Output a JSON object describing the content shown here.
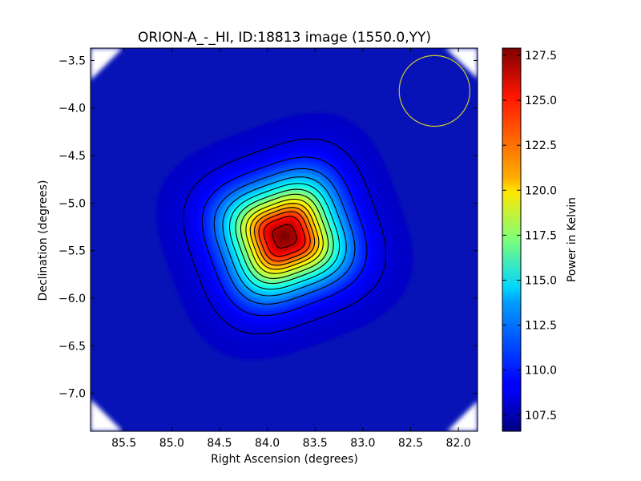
{
  "chart_data": {
    "type": "heatmap",
    "title": "ORION-A_-_HI, ID:18813 image (1550.0,YY)",
    "xlabel": "Right Ascension (degrees)",
    "ylabel": "Declination (degrees)",
    "colorbar_label": "Power in Kelvin",
    "x_axis_reversed": true,
    "xlim": [
      85.85,
      81.8
    ],
    "ylim": [
      -7.4,
      -3.37
    ],
    "xticks": [
      85.5,
      85.0,
      84.5,
      84.0,
      83.5,
      83.0,
      82.5,
      82.0
    ],
    "xtick_labels": [
      "85.5",
      "85.0",
      "84.5",
      "84.0",
      "83.5",
      "83.0",
      "82.5",
      "82.0"
    ],
    "yticks": [
      -3.5,
      -4.0,
      -4.5,
      -5.0,
      -5.5,
      -6.0,
      -6.5,
      -7.0
    ],
    "ytick_labels": [
      "−3.5",
      "−4.0",
      "−4.5",
      "−5.0",
      "−5.5",
      "−6.0",
      "−6.5",
      "−7.0"
    ],
    "colorbar_range": [
      106.6,
      127.9
    ],
    "colorbar_ticks": [
      107.5,
      110.0,
      112.5,
      115.0,
      117.5,
      120.0,
      122.5,
      125.0,
      127.5
    ],
    "colorbar_tick_labels": [
      "107.5",
      "110.0",
      "112.5",
      "115.0",
      "117.5",
      "120.0",
      "122.5",
      "125.0",
      "127.5"
    ],
    "colormap": "jet",
    "source_peak": {
      "ra": 83.82,
      "dec": -5.35,
      "value": 127.9
    },
    "background_value": 108.0,
    "contour_count": 13,
    "beam_circle": {
      "ra": 82.25,
      "dec": -3.82,
      "radius_deg": 0.37,
      "color": "#c8c830"
    },
    "contour_color": "#000000"
  }
}
